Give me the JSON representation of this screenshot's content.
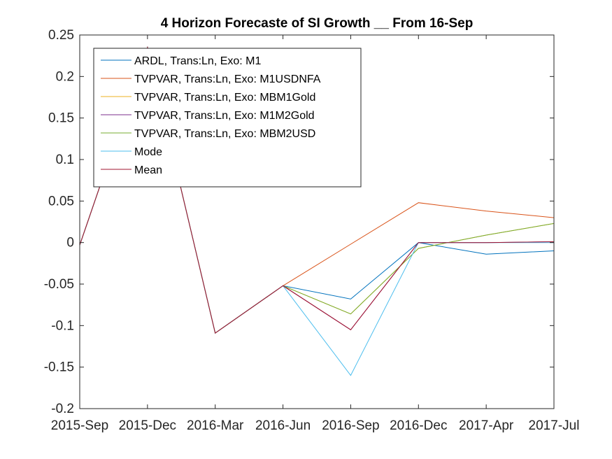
{
  "chart_data": {
    "type": "line",
    "title": "4 Horizon Forecaste of SI Growth __ From 16-Sep",
    "xlabel": "",
    "ylabel": "",
    "categories": [
      "2015-Sep",
      "2015-Dec",
      "2016-Mar",
      "2016-Jun",
      "2016-Sep",
      "2016-Dec",
      "2017-Apr",
      "2017-Jul"
    ],
    "ylim": [
      -0.2,
      0.25
    ],
    "yticks": [
      "-0.2",
      "-0.15",
      "-0.1",
      "-0.05",
      "0",
      "0.05",
      "0.1",
      "0.15",
      "0.2",
      "0.25"
    ],
    "grid": false,
    "legend_position": "top-left",
    "series": [
      {
        "name": "ARDL, Trans:Ln, Exo: M1",
        "color": "#0072BD",
        "values": [
          -0.003,
          0.235,
          -0.109,
          -0.052,
          -0.068,
          0.0,
          -0.014,
          -0.01
        ]
      },
      {
        "name": "TVPVAR, Trans:Ln, Exo: M1USDNFA",
        "color": "#D95319",
        "values": [
          -0.003,
          0.235,
          -0.109,
          -0.052,
          -0.002,
          0.048,
          0.038,
          0.03
        ]
      },
      {
        "name": "TVPVAR, Trans:Ln, Exo: MBM1Gold",
        "color": "#EDB120",
        "values": [
          -0.003,
          0.235,
          -0.109,
          -0.052,
          -0.086,
          -0.007,
          0.009,
          0.023
        ]
      },
      {
        "name": "TVPVAR, Trans:Ln, Exo: M1M2Gold",
        "color": "#7E2F8E",
        "values": [
          -0.003,
          0.235,
          -0.109,
          -0.052,
          -0.105,
          0.0,
          0.0,
          0.001
        ]
      },
      {
        "name": "TVPVAR, Trans:Ln, Exo: MBM2USD",
        "color": "#77AC30",
        "values": [
          -0.003,
          0.235,
          -0.109,
          -0.052,
          -0.086,
          -0.007,
          0.009,
          0.023
        ]
      },
      {
        "name": "Mode",
        "color": "#4DBEEE",
        "values": [
          -0.003,
          0.235,
          -0.109,
          -0.052,
          -0.16,
          0.0,
          0.0,
          0.0
        ]
      },
      {
        "name": "Mean",
        "color": "#A2142F",
        "values": [
          -0.003,
          0.235,
          -0.109,
          -0.052,
          -0.105,
          0.0,
          0.0,
          0.001
        ]
      }
    ]
  }
}
